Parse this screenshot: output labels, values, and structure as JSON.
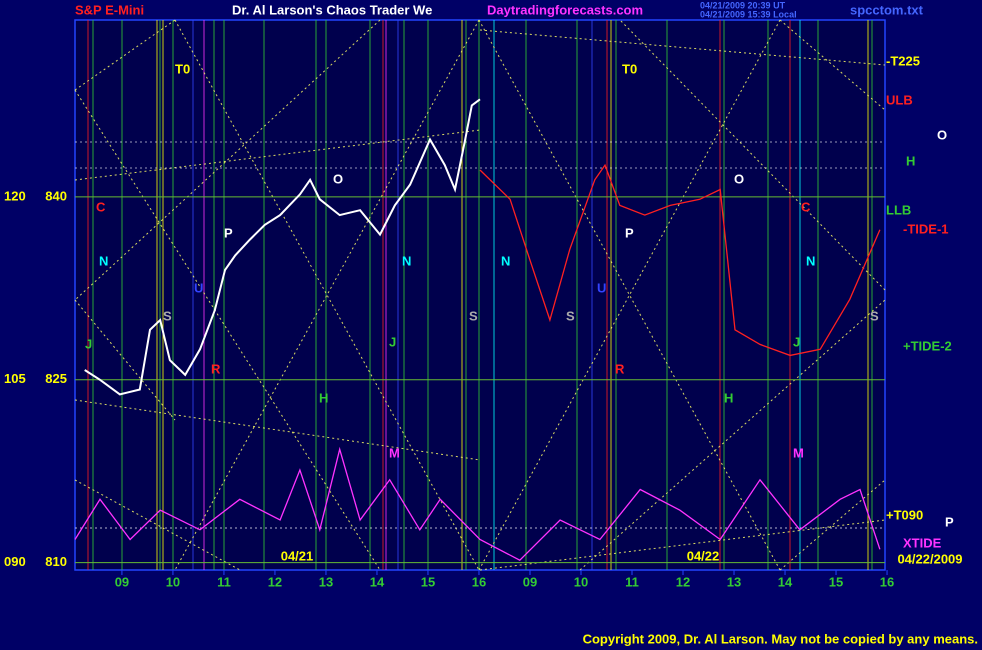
{
  "chart_data": {
    "type": "line",
    "title": "S&P E-Mini",
    "subtitle": "Dr. Al Larson's Chaos Trader We",
    "site": "Daytradingforecasts.com",
    "timestamps": [
      "04/21/2009 20:39 UT",
      "04/21/2009 15:39 Local"
    ],
    "file": "spcctom.txt",
    "copyright": "Copyright 2009, Dr. Al Larson. May not be copied by any means.",
    "dates": [
      "04/21",
      "04/22",
      "04/22/2009"
    ],
    "xlim": [
      0.08,
      15.96
    ],
    "xticks": [
      {
        "value": 1,
        "label": "09"
      },
      {
        "value": 2,
        "label": "10"
      },
      {
        "value": 3,
        "label": "11"
      },
      {
        "value": 4,
        "label": "12"
      },
      {
        "value": 5,
        "label": "13"
      },
      {
        "value": 6,
        "label": "14"
      },
      {
        "value": 7,
        "label": "15"
      },
      {
        "value": 8,
        "label": "16"
      },
      {
        "value": 9,
        "label": "09"
      },
      {
        "value": 10,
        "label": "10"
      },
      {
        "value": 11,
        "label": "11"
      },
      {
        "value": 12,
        "label": "12"
      },
      {
        "value": 13,
        "label": "13"
      },
      {
        "value": 14,
        "label": "14"
      },
      {
        "value": 15,
        "label": "15"
      },
      {
        "value": 16,
        "label": "16"
      }
    ],
    "ylim": [
      809.4,
      854.5
    ],
    "yticks": [
      810,
      825,
      840
    ],
    "y2lim": [
      89.4,
      134.5
    ],
    "y2ticks": [
      {
        "value": 90,
        "label": "090"
      },
      105,
      120
    ],
    "grid": true,
    "series": [
      {
        "name": "Price",
        "color": "#ffffff",
        "x": [
          0.27,
          0.57,
          0.96,
          1.35,
          1.55,
          1.75,
          1.94,
          2.24,
          2.53,
          2.82,
          3.02,
          3.22,
          3.51,
          3.8,
          4.1,
          4.49,
          4.69,
          4.88,
          5.27,
          5.67,
          6.06,
          6.35,
          6.65,
          7.04,
          7.33,
          7.53,
          7.73,
          7.86,
          8.02
        ],
        "values": [
          825.8,
          825.0,
          823.8,
          824.2,
          829.1,
          829.9,
          826.6,
          825.4,
          827.5,
          830.7,
          834.0,
          835.2,
          836.5,
          837.7,
          838.5,
          840.2,
          841.4,
          839.8,
          838.5,
          838.9,
          836.9,
          839.3,
          841.0,
          844.7,
          842.6,
          840.6,
          844.7,
          847.5,
          848.0
        ]
      },
      {
        "name": "TIDE-1",
        "color": "#ff2020",
        "x": [
          8.02,
          8.61,
          9.0,
          9.39,
          9.78,
          10.27,
          10.47,
          10.76,
          11.25,
          11.75,
          12.33,
          12.73,
          13.02,
          13.51,
          14.1,
          14.69,
          15.27,
          15.86
        ],
        "values": [
          842.2,
          839.8,
          834.8,
          829.9,
          835.7,
          841.4,
          842.6,
          839.3,
          838.5,
          839.3,
          839.8,
          840.6,
          829.1,
          827.9,
          827.0,
          827.5,
          831.6,
          837.3
        ]
      },
      {
        "name": "XTIDE",
        "color": "#ff33ff",
        "x": [
          0.08,
          0.57,
          1.16,
          1.75,
          2.53,
          3.31,
          4.1,
          4.49,
          4.88,
          5.27,
          5.67,
          6.25,
          6.84,
          7.24,
          8.02,
          8.8,
          9.59,
          10.37,
          11.16,
          11.94,
          12.73,
          13.51,
          14.29,
          15.08,
          15.47,
          15.86
        ],
        "values": [
          811.9,
          815.2,
          811.9,
          814.3,
          812.7,
          815.2,
          813.5,
          817.6,
          812.7,
          819.3,
          813.5,
          816.8,
          812.7,
          815.2,
          811.9,
          810.2,
          813.5,
          811.9,
          816.0,
          814.3,
          811.9,
          816.8,
          812.7,
          815.2,
          816.0,
          811.1
        ]
      }
    ],
    "annotations": [
      "T0",
      "T0",
      "C",
      "C",
      "N",
      "N",
      "N",
      "N",
      "J",
      "J",
      "J",
      "H",
      "H",
      "P",
      "P",
      "O",
      "O",
      "S",
      "S",
      "S",
      "S",
      "U",
      "U",
      "R",
      "R",
      "M",
      "M",
      "-T225",
      "ULB",
      "O",
      "H",
      "LLB",
      "-TIDE-1",
      "+TIDE-2",
      "+T090",
      "P",
      "XTIDE"
    ]
  }
}
